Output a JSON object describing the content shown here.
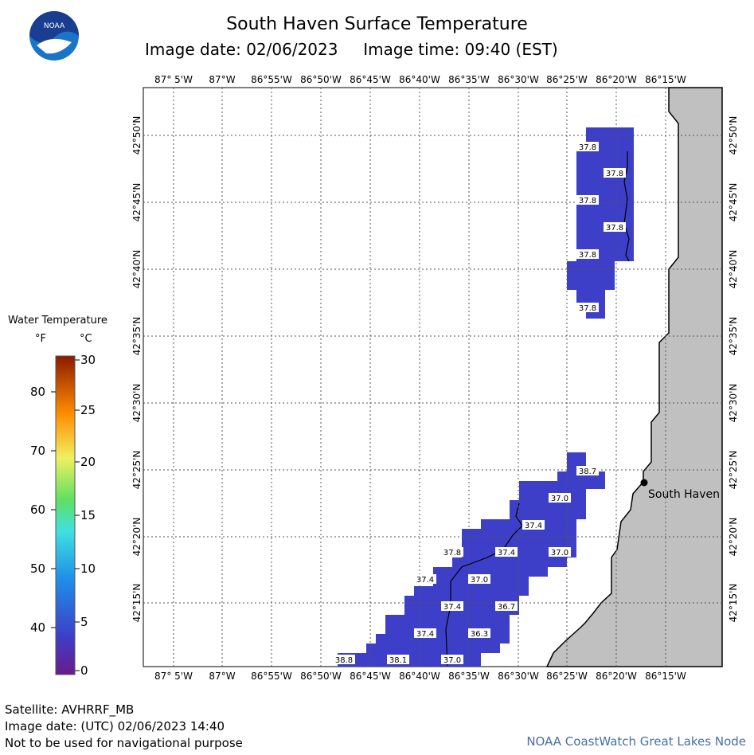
{
  "header": {
    "title": "South Haven Surface Temperature",
    "image_date_label": "Image date: 02/06/2023",
    "image_time_label": "Image time: 09:40 (EST)"
  },
  "logo": {
    "text": "NOAA",
    "color_top": "#1a3d8f",
    "color_bottom": "#1a75c9"
  },
  "legend": {
    "title": "Water Temperature",
    "unit_f": "°F",
    "unit_c": "°C",
    "f_ticks": [
      "80",
      "70",
      "60",
      "50",
      "40"
    ],
    "c_ticks": [
      "30",
      "25",
      "20",
      "15",
      "10",
      "5",
      "0"
    ]
  },
  "map": {
    "lon_labels": [
      "87° 5'W",
      "87°W",
      "86°55'W",
      "86°50'W",
      "86°45'W",
      "86°40'W",
      "86°35'W",
      "86°30'W",
      "86°25'W",
      "86°20'W",
      "86°15'W"
    ],
    "lat_labels": [
      "42°50'N",
      "42°45'N",
      "42°40'N",
      "42°35'N",
      "42°30'N",
      "42°25'N",
      "42°20'N",
      "42°15'N"
    ],
    "city": "South Haven",
    "water_color": "#3d3fc8",
    "land_color": "#c0c0c0",
    "temperature_labels": [
      "37.8",
      "37.8",
      "37.8",
      "37.8",
      "37.8",
      "37.8",
      "38.7",
      "37.0",
      "37.4",
      "37.8",
      "37.4",
      "37.0",
      "37.4",
      "37.0",
      "37.4",
      "36.7",
      "37.4",
      "36.3",
      "38.8",
      "38.1",
      "37.0"
    ]
  },
  "footer": {
    "satellite": "Satellite: AVHRRF_MB",
    "utc_date": "Image date: (UTC) 02/06/2023  14:40",
    "disclaimer": "Not to be used for navigational purpose",
    "credit": "NOAA CoastWatch Great Lakes Node"
  }
}
